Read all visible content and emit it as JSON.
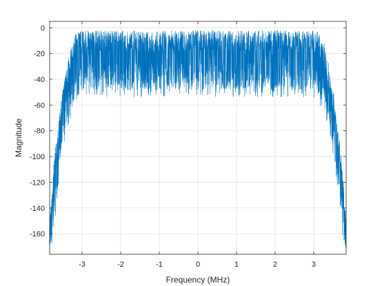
{
  "chart_data": {
    "type": "line",
    "title": "",
    "xlabel": "Frequency (MHz)",
    "ylabel": "Magnitude",
    "xlim": [
      -3.84,
      3.84
    ],
    "ylim": [
      -176,
      5
    ],
    "grid": true,
    "xticks": [
      -3,
      -2,
      -1,
      0,
      1,
      2,
      3
    ],
    "yticks": [
      0,
      -20,
      -40,
      -60,
      -80,
      -100,
      -120,
      -140,
      -160
    ],
    "xtick_labels": [
      "-3",
      "-2",
      "-1",
      "0",
      "1",
      "2",
      "3"
    ],
    "ytick_labels": [
      "0",
      "-20",
      "-40",
      "-60",
      "-80",
      "-100",
      "-120",
      "-140",
      "-160"
    ],
    "series": [
      {
        "color": "#0072BD",
        "envelope": {
          "x": [
            -3.84,
            -3.78,
            -3.7,
            -3.6,
            -3.5,
            -3.4,
            -3.3,
            -3.2,
            -3.1,
            -3.0,
            3.0,
            3.1,
            3.2,
            3.3,
            3.4,
            3.5,
            3.6,
            3.7,
            3.78,
            3.84
          ],
          "upper": [
            -150,
            -125,
            -95,
            -70,
            -48,
            -30,
            -15,
            -6,
            -3,
            -2,
            -2,
            -3,
            -6,
            -15,
            -30,
            -48,
            -70,
            -95,
            -125,
            -150
          ],
          "lower": [
            -172,
            -165,
            -145,
            -120,
            -95,
            -78,
            -65,
            -57,
            -52,
            -48,
            -48,
            -52,
            -57,
            -65,
            -78,
            -95,
            -120,
            -145,
            -165,
            -172
          ]
        }
      }
    ]
  }
}
